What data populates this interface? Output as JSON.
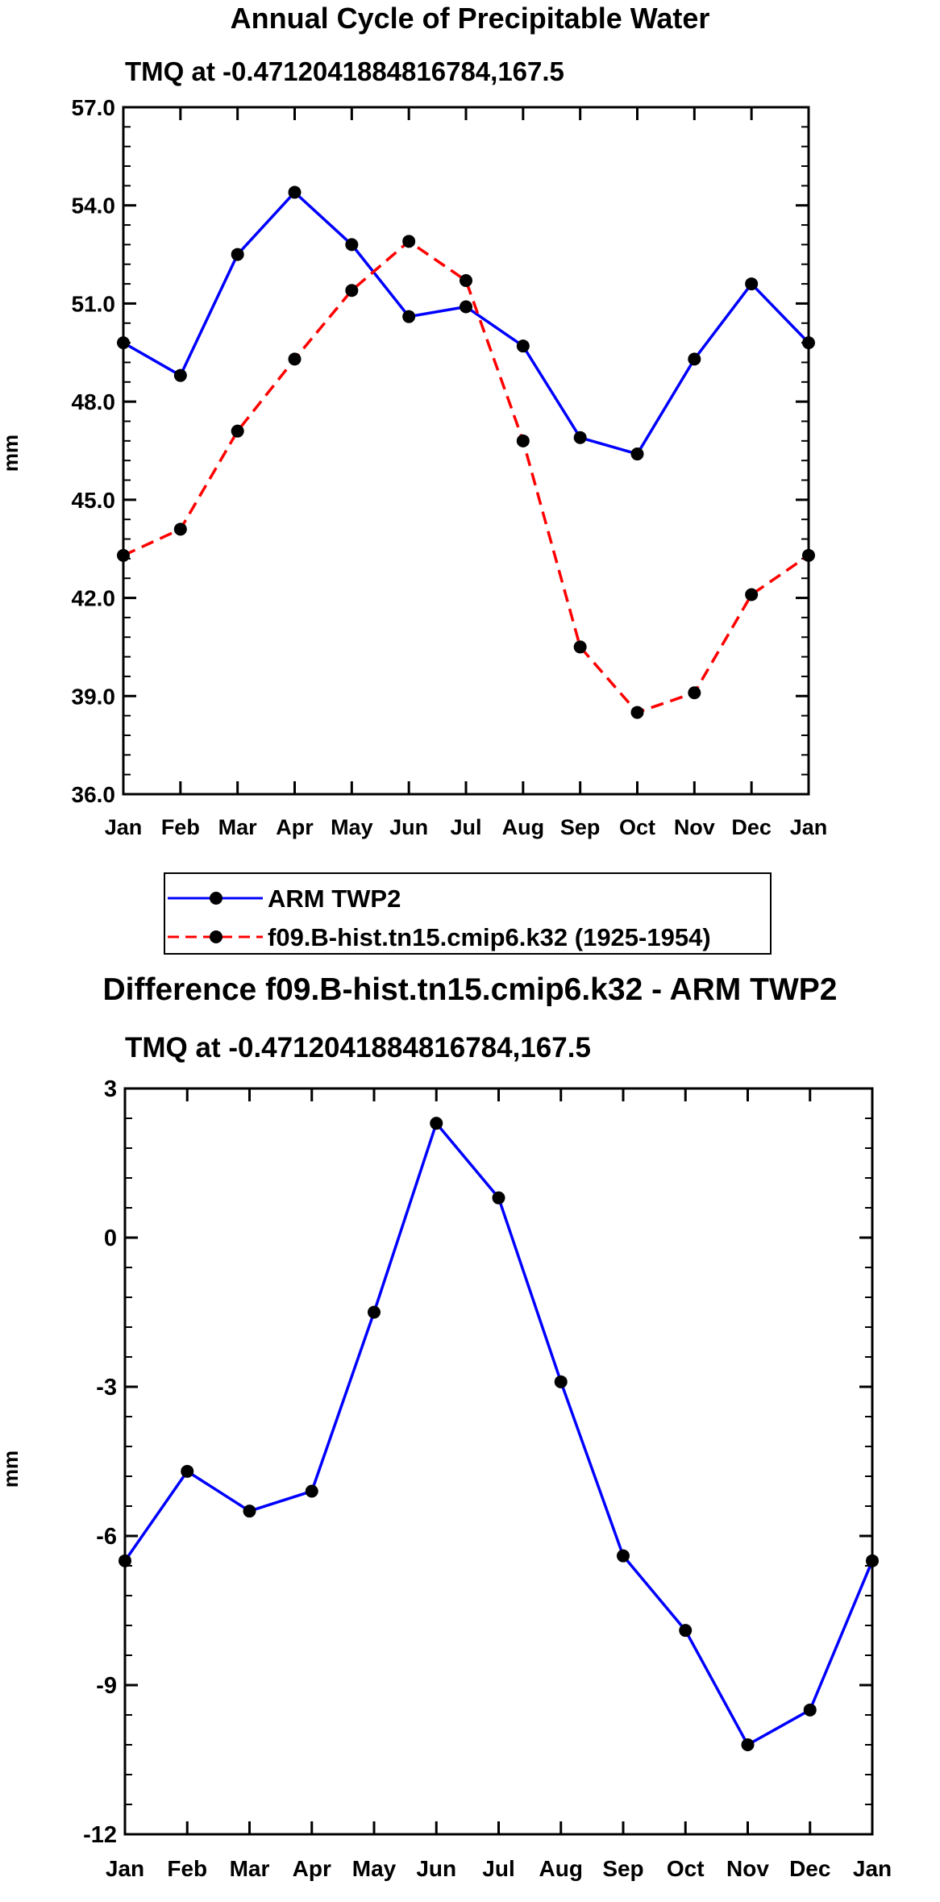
{
  "chart_data": [
    {
      "type": "line",
      "title": "Annual Cycle of Precipitable Water",
      "subtitle": "TMQ at -0.4712041884816784,167.5",
      "xlabel": "",
      "ylabel": "mm",
      "ylim": [
        36.0,
        57.0
      ],
      "y_ticks": [
        "36.0",
        "39.0",
        "42.0",
        "45.0",
        "48.0",
        "51.0",
        "54.0",
        "57.0"
      ],
      "categories": [
        "Jan",
        "Feb",
        "Mar",
        "Apr",
        "May",
        "Jun",
        "Jul",
        "Aug",
        "Sep",
        "Oct",
        "Nov",
        "Dec",
        "Jan"
      ],
      "series": [
        {
          "name": "ARM TWP2",
          "color": "#0000ff",
          "style": "solid",
          "values": [
            49.8,
            48.8,
            52.5,
            54.4,
            52.8,
            50.6,
            50.9,
            49.7,
            46.9,
            46.4,
            49.3,
            51.6,
            49.8
          ]
        },
        {
          "name": "f09.B-hist.tn15.cmip6.k32 (1925-1954)",
          "color": "#ff0000",
          "style": "dashed",
          "values": [
            43.3,
            44.1,
            47.1,
            49.3,
            51.4,
            52.9,
            51.7,
            46.8,
            40.5,
            38.5,
            39.1,
            42.1,
            43.3
          ]
        }
      ],
      "legend": "below"
    },
    {
      "type": "line",
      "title": "Difference f09.B-hist.tn15.cmip6.k32 - ARM TWP2",
      "subtitle": "TMQ at -0.4712041884816784,167.5",
      "xlabel": "",
      "ylabel": "mm",
      "ylim": [
        -12,
        3
      ],
      "y_ticks": [
        "-12",
        "-9",
        "-6",
        "-3",
        "0",
        "3"
      ],
      "categories": [
        "Jan",
        "Feb",
        "Mar",
        "Apr",
        "May",
        "Jun",
        "Jul",
        "Aug",
        "Sep",
        "Oct",
        "Nov",
        "Dec",
        "Jan"
      ],
      "series": [
        {
          "name": "Difference",
          "color": "#0000ff",
          "style": "solid",
          "values": [
            -6.5,
            -4.7,
            -5.5,
            -5.1,
            -1.5,
            2.3,
            0.8,
            -2.9,
            -6.4,
            -7.9,
            -10.2,
            -9.5,
            -6.5
          ]
        }
      ]
    }
  ]
}
